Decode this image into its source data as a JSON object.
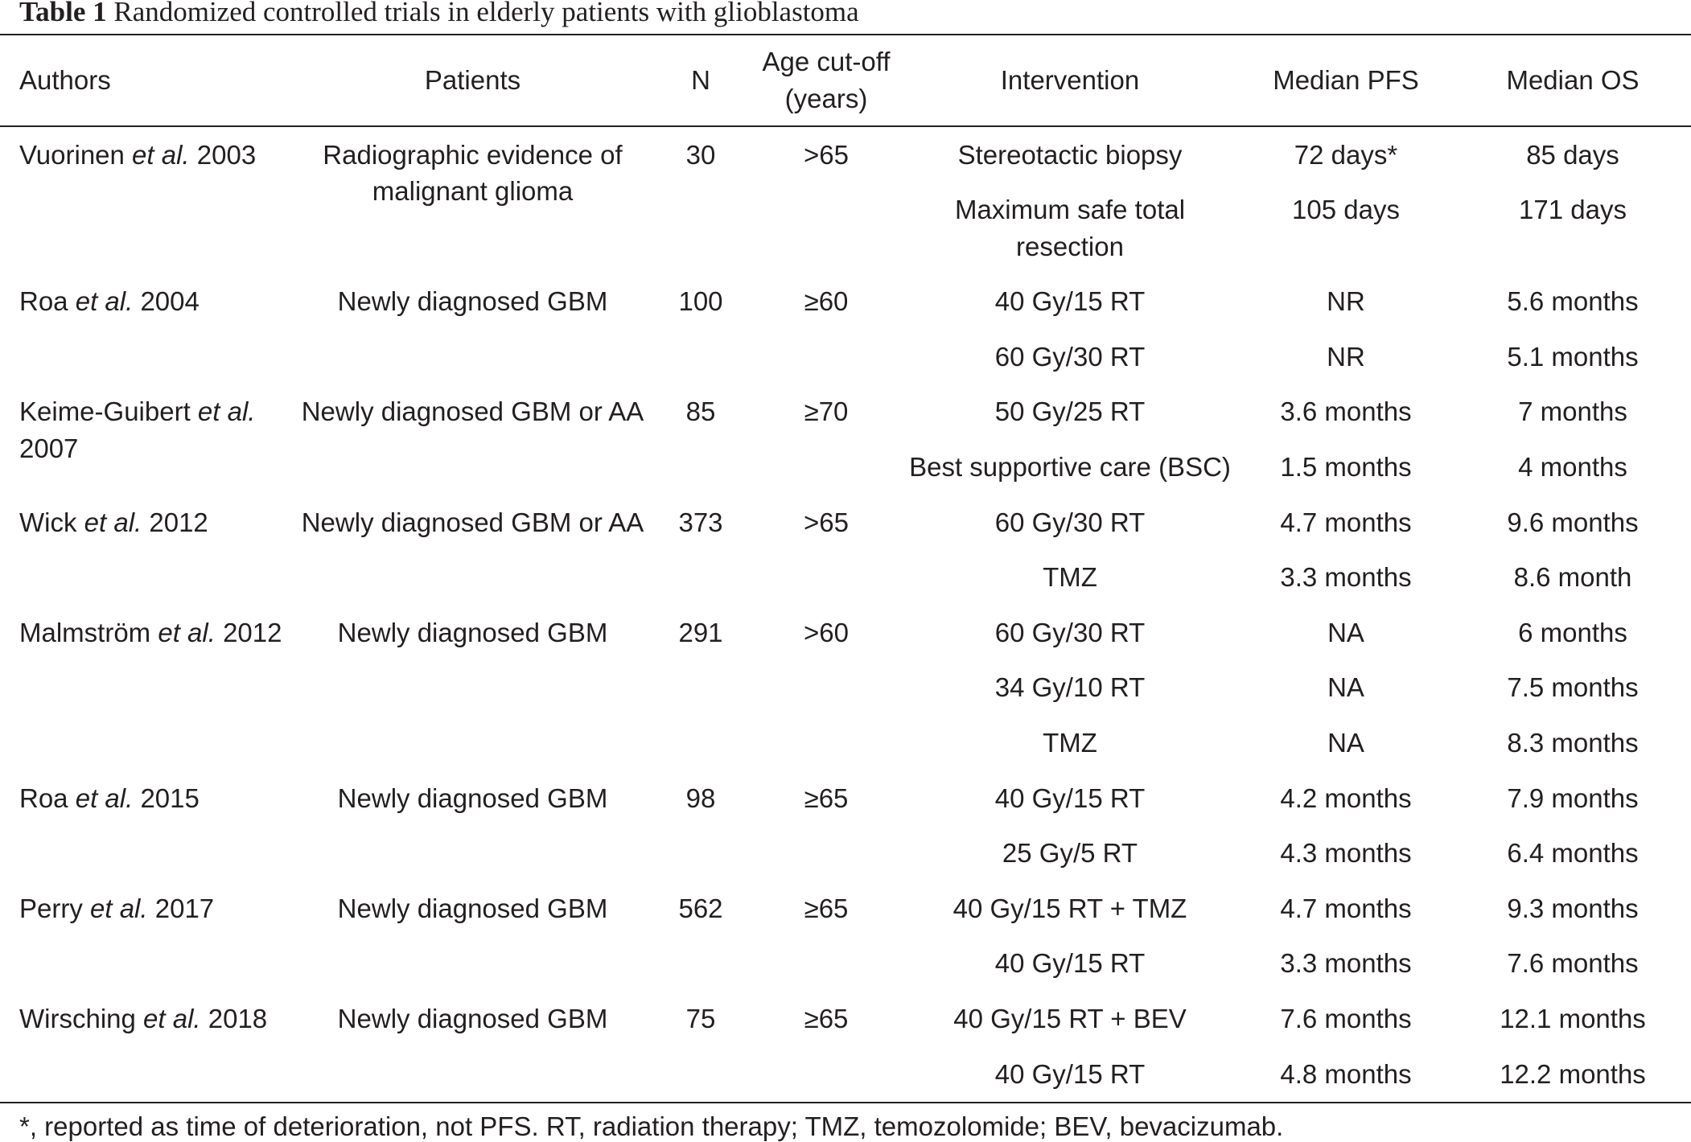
{
  "title": {
    "label": "Table 1",
    "text": "Randomized controlled trials in elderly patients with glioblastoma"
  },
  "columns": {
    "authors": "Authors",
    "patients": "Patients",
    "n": "N",
    "age": "Age cut-off (years)",
    "intervention": "Intervention",
    "pfs": "Median PFS",
    "os": "Median OS"
  },
  "studies": [
    {
      "author": "Vuorinen",
      "etal": "et al.",
      "year": "2003",
      "patients": "Radiographic evidence of malignant glioma",
      "n": "30",
      "age": ">65",
      "arms": [
        {
          "intervention": "Stereotactic biopsy",
          "pfs": "72 days*",
          "os": "85 days"
        },
        {
          "intervention": "Maximum safe total resection",
          "pfs": "105 days",
          "os": "171 days"
        }
      ]
    },
    {
      "author": "Roa",
      "etal": "et al.",
      "year": "2004",
      "patients": "Newly diagnosed GBM",
      "n": "100",
      "age": "≥60",
      "arms": [
        {
          "intervention": "40 Gy/15 RT",
          "pfs": "NR",
          "os": "5.6 months"
        },
        {
          "intervention": "60 Gy/30 RT",
          "pfs": "NR",
          "os": "5.1 months"
        }
      ]
    },
    {
      "author": "Keime-Guibert",
      "etal": "et al.",
      "year": "2007",
      "patients": "Newly diagnosed GBM or AA",
      "n": "85",
      "age": "≥70",
      "arms": [
        {
          "intervention": "50 Gy/25 RT",
          "pfs": "3.6 months",
          "os": "7 months"
        },
        {
          "intervention": "Best supportive care (BSC)",
          "pfs": "1.5 months",
          "os": "4 months"
        }
      ]
    },
    {
      "author": "Wick",
      "etal": "et al.",
      "year": "2012",
      "patients": "Newly diagnosed GBM or AA",
      "n": "373",
      "age": ">65",
      "arms": [
        {
          "intervention": "60 Gy/30 RT",
          "pfs": "4.7 months",
          "os": "9.6 months"
        },
        {
          "intervention": "TMZ",
          "pfs": "3.3 months",
          "os": "8.6 month"
        }
      ]
    },
    {
      "author": "Malmström",
      "etal": "et al.",
      "year": "2012",
      "patients": "Newly diagnosed GBM",
      "n": "291",
      "age": ">60",
      "arms": [
        {
          "intervention": "60 Gy/30 RT",
          "pfs": "NA",
          "os": "6 months"
        },
        {
          "intervention": "34 Gy/10 RT",
          "pfs": "NA",
          "os": "7.5 months"
        },
        {
          "intervention": "TMZ",
          "pfs": "NA",
          "os": "8.3 months"
        }
      ]
    },
    {
      "author": "Roa",
      "etal": "et al.",
      "year": "2015",
      "patients": "Newly diagnosed GBM",
      "n": "98",
      "age": "≥65",
      "arms": [
        {
          "intervention": "40 Gy/15 RT",
          "pfs": "4.2 months",
          "os": "7.9 months"
        },
        {
          "intervention": "25 Gy/5 RT",
          "pfs": "4.3 months",
          "os": "6.4 months"
        }
      ]
    },
    {
      "author": "Perry",
      "etal": "et al.",
      "year": "2017",
      "patients": "Newly diagnosed GBM",
      "n": "562",
      "age": "≥65",
      "arms": [
        {
          "intervention": "40 Gy/15 RT + TMZ",
          "pfs": "4.7 months",
          "os": "9.3 months"
        },
        {
          "intervention": "40 Gy/15 RT",
          "pfs": "3.3 months",
          "os": "7.6 months"
        }
      ]
    },
    {
      "author": "Wirsching",
      "etal": "et al.",
      "year": "2018",
      "patients": "Newly diagnosed GBM",
      "n": "75",
      "age": "≥65",
      "arms": [
        {
          "intervention": "40 Gy/15 RT + BEV",
          "pfs": "7.6 months",
          "os": "12.1 months"
        },
        {
          "intervention": "40 Gy/15 RT",
          "pfs": "4.8 months",
          "os": "12.2 months"
        }
      ]
    }
  ],
  "footnote": "*, reported as time of deterioration, not PFS. RT, radiation therapy; TMZ, temozolomide; BEV, bevacizumab."
}
